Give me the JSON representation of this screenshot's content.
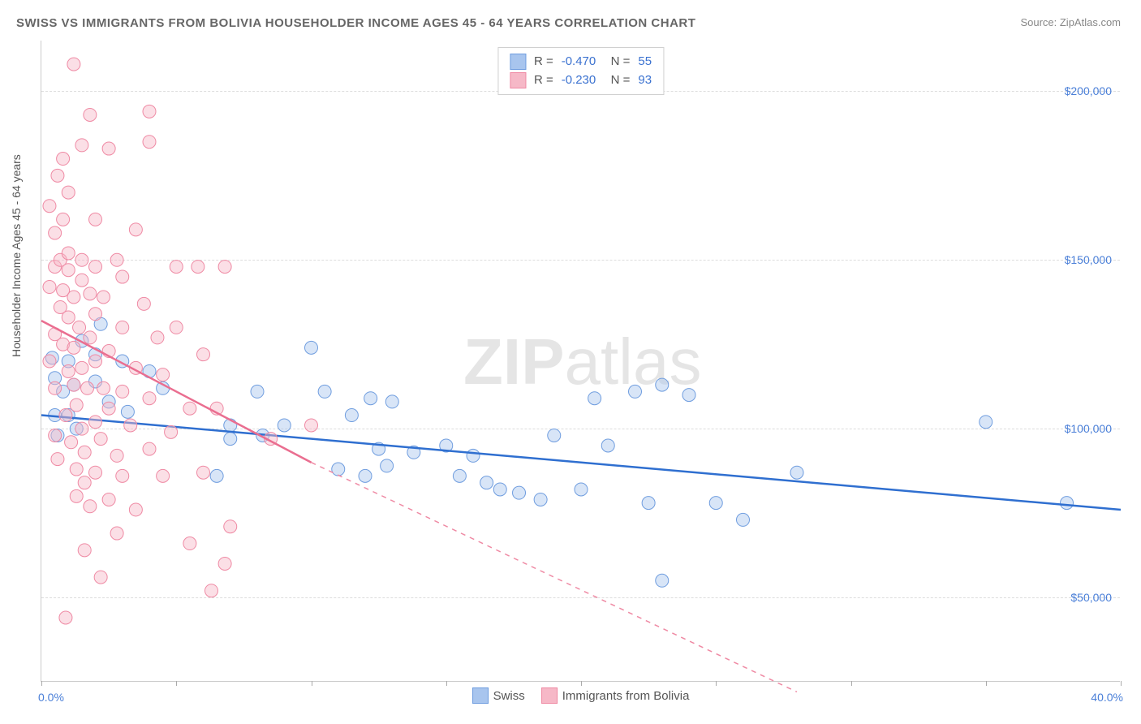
{
  "title": "SWISS VS IMMIGRANTS FROM BOLIVIA HOUSEHOLDER INCOME AGES 45 - 64 YEARS CORRELATION CHART",
  "source": "Source: ZipAtlas.com",
  "ylabel": "Householder Income Ages 45 - 64 years",
  "watermark_bold": "ZIP",
  "watermark_light": "atlas",
  "chart": {
    "type": "scatter",
    "xlim": [
      0,
      40
    ],
    "ylim": [
      25000,
      215000
    ],
    "x_tick_positions": [
      0,
      5,
      10,
      15,
      20,
      25,
      30,
      35,
      40
    ],
    "x_axis_labels": {
      "start": "0.0%",
      "end": "40.0%"
    },
    "y_ticks": [
      50000,
      100000,
      150000,
      200000
    ],
    "y_tick_labels": [
      "$50,000",
      "$100,000",
      "$150,000",
      "$200,000"
    ],
    "grid_color": "#dddddd",
    "background_color": "#ffffff",
    "axis_label_color": "#4a7fd8",
    "title_color": "#666666",
    "title_fontsize": 15,
    "label_fontsize": 14,
    "marker_radius": 8,
    "marker_opacity": 0.45,
    "series": [
      {
        "name": "Swiss",
        "fill_color": "#a8c5ee",
        "stroke_color": "#6f9ddf",
        "line_color": "#2f6fd0",
        "line_width": 2.5,
        "R": "-0.470",
        "N": "55",
        "trend": {
          "x1": 0,
          "y1": 104000,
          "x2": 40,
          "y2": 76000,
          "dash": false
        },
        "points": [
          [
            0.4,
            121000
          ],
          [
            0.5,
            104000
          ],
          [
            0.5,
            115000
          ],
          [
            0.6,
            98000
          ],
          [
            0.8,
            111000
          ],
          [
            1.0,
            120000
          ],
          [
            1.0,
            104000
          ],
          [
            1.2,
            113000
          ],
          [
            1.3,
            100000
          ],
          [
            1.5,
            126000
          ],
          [
            2.0,
            114000
          ],
          [
            2.0,
            122000
          ],
          [
            2.2,
            131000
          ],
          [
            2.5,
            108000
          ],
          [
            3.0,
            120000
          ],
          [
            3.2,
            105000
          ],
          [
            4.0,
            117000
          ],
          [
            4.5,
            112000
          ],
          [
            6.5,
            86000
          ],
          [
            7.0,
            97000
          ],
          [
            7.0,
            101000
          ],
          [
            8.0,
            111000
          ],
          [
            8.2,
            98000
          ],
          [
            9.0,
            101000
          ],
          [
            10.0,
            124000
          ],
          [
            10.5,
            111000
          ],
          [
            11.0,
            88000
          ],
          [
            11.5,
            104000
          ],
          [
            12.0,
            86000
          ],
          [
            12.2,
            109000
          ],
          [
            12.5,
            94000
          ],
          [
            12.8,
            89000
          ],
          [
            13.0,
            108000
          ],
          [
            13.8,
            93000
          ],
          [
            15.0,
            95000
          ],
          [
            15.5,
            86000
          ],
          [
            16.0,
            92000
          ],
          [
            16.5,
            84000
          ],
          [
            17.0,
            82000
          ],
          [
            17.7,
            81000
          ],
          [
            18.5,
            79000
          ],
          [
            19.0,
            98000
          ],
          [
            20.0,
            82000
          ],
          [
            20.5,
            109000
          ],
          [
            21.0,
            95000
          ],
          [
            22.0,
            111000
          ],
          [
            22.5,
            78000
          ],
          [
            23.0,
            113000
          ],
          [
            23.0,
            55000
          ],
          [
            24.0,
            110000
          ],
          [
            25.0,
            78000
          ],
          [
            26.0,
            73000
          ],
          [
            28.0,
            87000
          ],
          [
            35.0,
            102000
          ],
          [
            38.0,
            78000
          ]
        ]
      },
      {
        "name": "Immigrants from Bolivia",
        "fill_color": "#f6b8c7",
        "stroke_color": "#ef8aa4",
        "line_color": "#ea6e90",
        "line_width": 2.5,
        "R": "-0.230",
        "N": "93",
        "trend": {
          "x1": 0,
          "y1": 132000,
          "x2": 10,
          "y2": 90000,
          "dash": false
        },
        "trend_ext": {
          "x1": 10,
          "y1": 90000,
          "x2": 28,
          "y2": 22000,
          "dash": true
        },
        "points": [
          [
            0.3,
            120000
          ],
          [
            0.3,
            142000
          ],
          [
            0.3,
            166000
          ],
          [
            0.5,
            98000
          ],
          [
            0.5,
            112000
          ],
          [
            0.5,
            128000
          ],
          [
            0.5,
            148000
          ],
          [
            0.5,
            158000
          ],
          [
            0.6,
            175000
          ],
          [
            0.6,
            91000
          ],
          [
            0.7,
            136000
          ],
          [
            0.7,
            150000
          ],
          [
            0.8,
            125000
          ],
          [
            0.8,
            141000
          ],
          [
            0.8,
            162000
          ],
          [
            0.8,
            180000
          ],
          [
            0.9,
            44000
          ],
          [
            0.9,
            104000
          ],
          [
            1.0,
            117000
          ],
          [
            1.0,
            133000
          ],
          [
            1.0,
            147000
          ],
          [
            1.0,
            152000
          ],
          [
            1.0,
            170000
          ],
          [
            1.1,
            96000
          ],
          [
            1.2,
            113000
          ],
          [
            1.2,
            124000
          ],
          [
            1.2,
            139000
          ],
          [
            1.2,
            208000
          ],
          [
            1.3,
            80000
          ],
          [
            1.3,
            88000
          ],
          [
            1.3,
            107000
          ],
          [
            1.4,
            130000
          ],
          [
            1.5,
            100000
          ],
          [
            1.5,
            118000
          ],
          [
            1.5,
            144000
          ],
          [
            1.5,
            150000
          ],
          [
            1.5,
            184000
          ],
          [
            1.6,
            64000
          ],
          [
            1.6,
            84000
          ],
          [
            1.6,
            93000
          ],
          [
            1.7,
            112000
          ],
          [
            1.8,
            77000
          ],
          [
            1.8,
            127000
          ],
          [
            1.8,
            140000
          ],
          [
            1.8,
            193000
          ],
          [
            2.0,
            87000
          ],
          [
            2.0,
            102000
          ],
          [
            2.0,
            120000
          ],
          [
            2.0,
            134000
          ],
          [
            2.0,
            148000
          ],
          [
            2.0,
            162000
          ],
          [
            2.2,
            56000
          ],
          [
            2.2,
            97000
          ],
          [
            2.3,
            112000
          ],
          [
            2.3,
            139000
          ],
          [
            2.5,
            79000
          ],
          [
            2.5,
            106000
          ],
          [
            2.5,
            123000
          ],
          [
            2.5,
            183000
          ],
          [
            2.8,
            69000
          ],
          [
            2.8,
            92000
          ],
          [
            2.8,
            150000
          ],
          [
            3.0,
            86000
          ],
          [
            3.0,
            111000
          ],
          [
            3.0,
            130000
          ],
          [
            3.0,
            145000
          ],
          [
            3.3,
            101000
          ],
          [
            3.5,
            76000
          ],
          [
            3.5,
            118000
          ],
          [
            3.5,
            159000
          ],
          [
            3.8,
            137000
          ],
          [
            4.0,
            94000
          ],
          [
            4.0,
            109000
          ],
          [
            4.0,
            185000
          ],
          [
            4.0,
            194000
          ],
          [
            4.3,
            127000
          ],
          [
            4.5,
            86000
          ],
          [
            4.5,
            116000
          ],
          [
            4.8,
            99000
          ],
          [
            5.0,
            130000
          ],
          [
            5.0,
            148000
          ],
          [
            5.5,
            66000
          ],
          [
            5.5,
            106000
          ],
          [
            5.8,
            148000
          ],
          [
            6.0,
            87000
          ],
          [
            6.0,
            122000
          ],
          [
            6.3,
            52000
          ],
          [
            6.5,
            106000
          ],
          [
            6.8,
            60000
          ],
          [
            6.8,
            148000
          ],
          [
            7.0,
            71000
          ],
          [
            8.5,
            97000
          ],
          [
            10.0,
            101000
          ]
        ]
      }
    ],
    "legend_bottom": [
      {
        "label": "Swiss",
        "fill": "#a8c5ee",
        "stroke": "#6f9ddf"
      },
      {
        "label": "Immigrants from Bolivia",
        "fill": "#f6b8c7",
        "stroke": "#ef8aa4"
      }
    ]
  }
}
